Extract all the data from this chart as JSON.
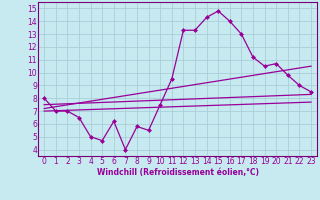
{
  "xlabel": "Windchill (Refroidissement éolien,°C)",
  "bg_color": "#c6eaf0",
  "grid_color": "#aacfda",
  "line_color": "#990099",
  "spine_color": "#7a007a",
  "xlim": [
    -0.5,
    23.5
  ],
  "ylim": [
    3.5,
    15.5
  ],
  "xticks": [
    0,
    1,
    2,
    3,
    4,
    5,
    6,
    7,
    8,
    9,
    10,
    11,
    12,
    13,
    14,
    15,
    16,
    17,
    18,
    19,
    20,
    21,
    22,
    23
  ],
  "yticks": [
    4,
    5,
    6,
    7,
    8,
    9,
    10,
    11,
    12,
    13,
    14,
    15
  ],
  "line1_x": [
    0,
    1,
    2,
    3,
    4,
    5,
    6,
    7,
    8,
    9,
    10,
    11,
    12,
    13,
    14,
    15,
    16,
    17,
    18,
    19,
    20,
    21,
    22,
    23
  ],
  "line1_y": [
    8.0,
    7.0,
    7.0,
    6.5,
    5.0,
    4.7,
    6.2,
    4.0,
    5.8,
    5.5,
    7.5,
    9.5,
    13.3,
    13.3,
    14.3,
    14.8,
    14.0,
    13.0,
    11.2,
    10.5,
    10.7,
    9.8,
    9.0,
    8.5
  ],
  "line2_x": [
    0,
    23
  ],
  "line2_y": [
    7.5,
    8.3
  ],
  "line3_x": [
    0,
    23
  ],
  "line3_y": [
    7.2,
    10.5
  ],
  "line4_x": [
    0,
    23
  ],
  "line4_y": [
    7.0,
    7.7
  ]
}
